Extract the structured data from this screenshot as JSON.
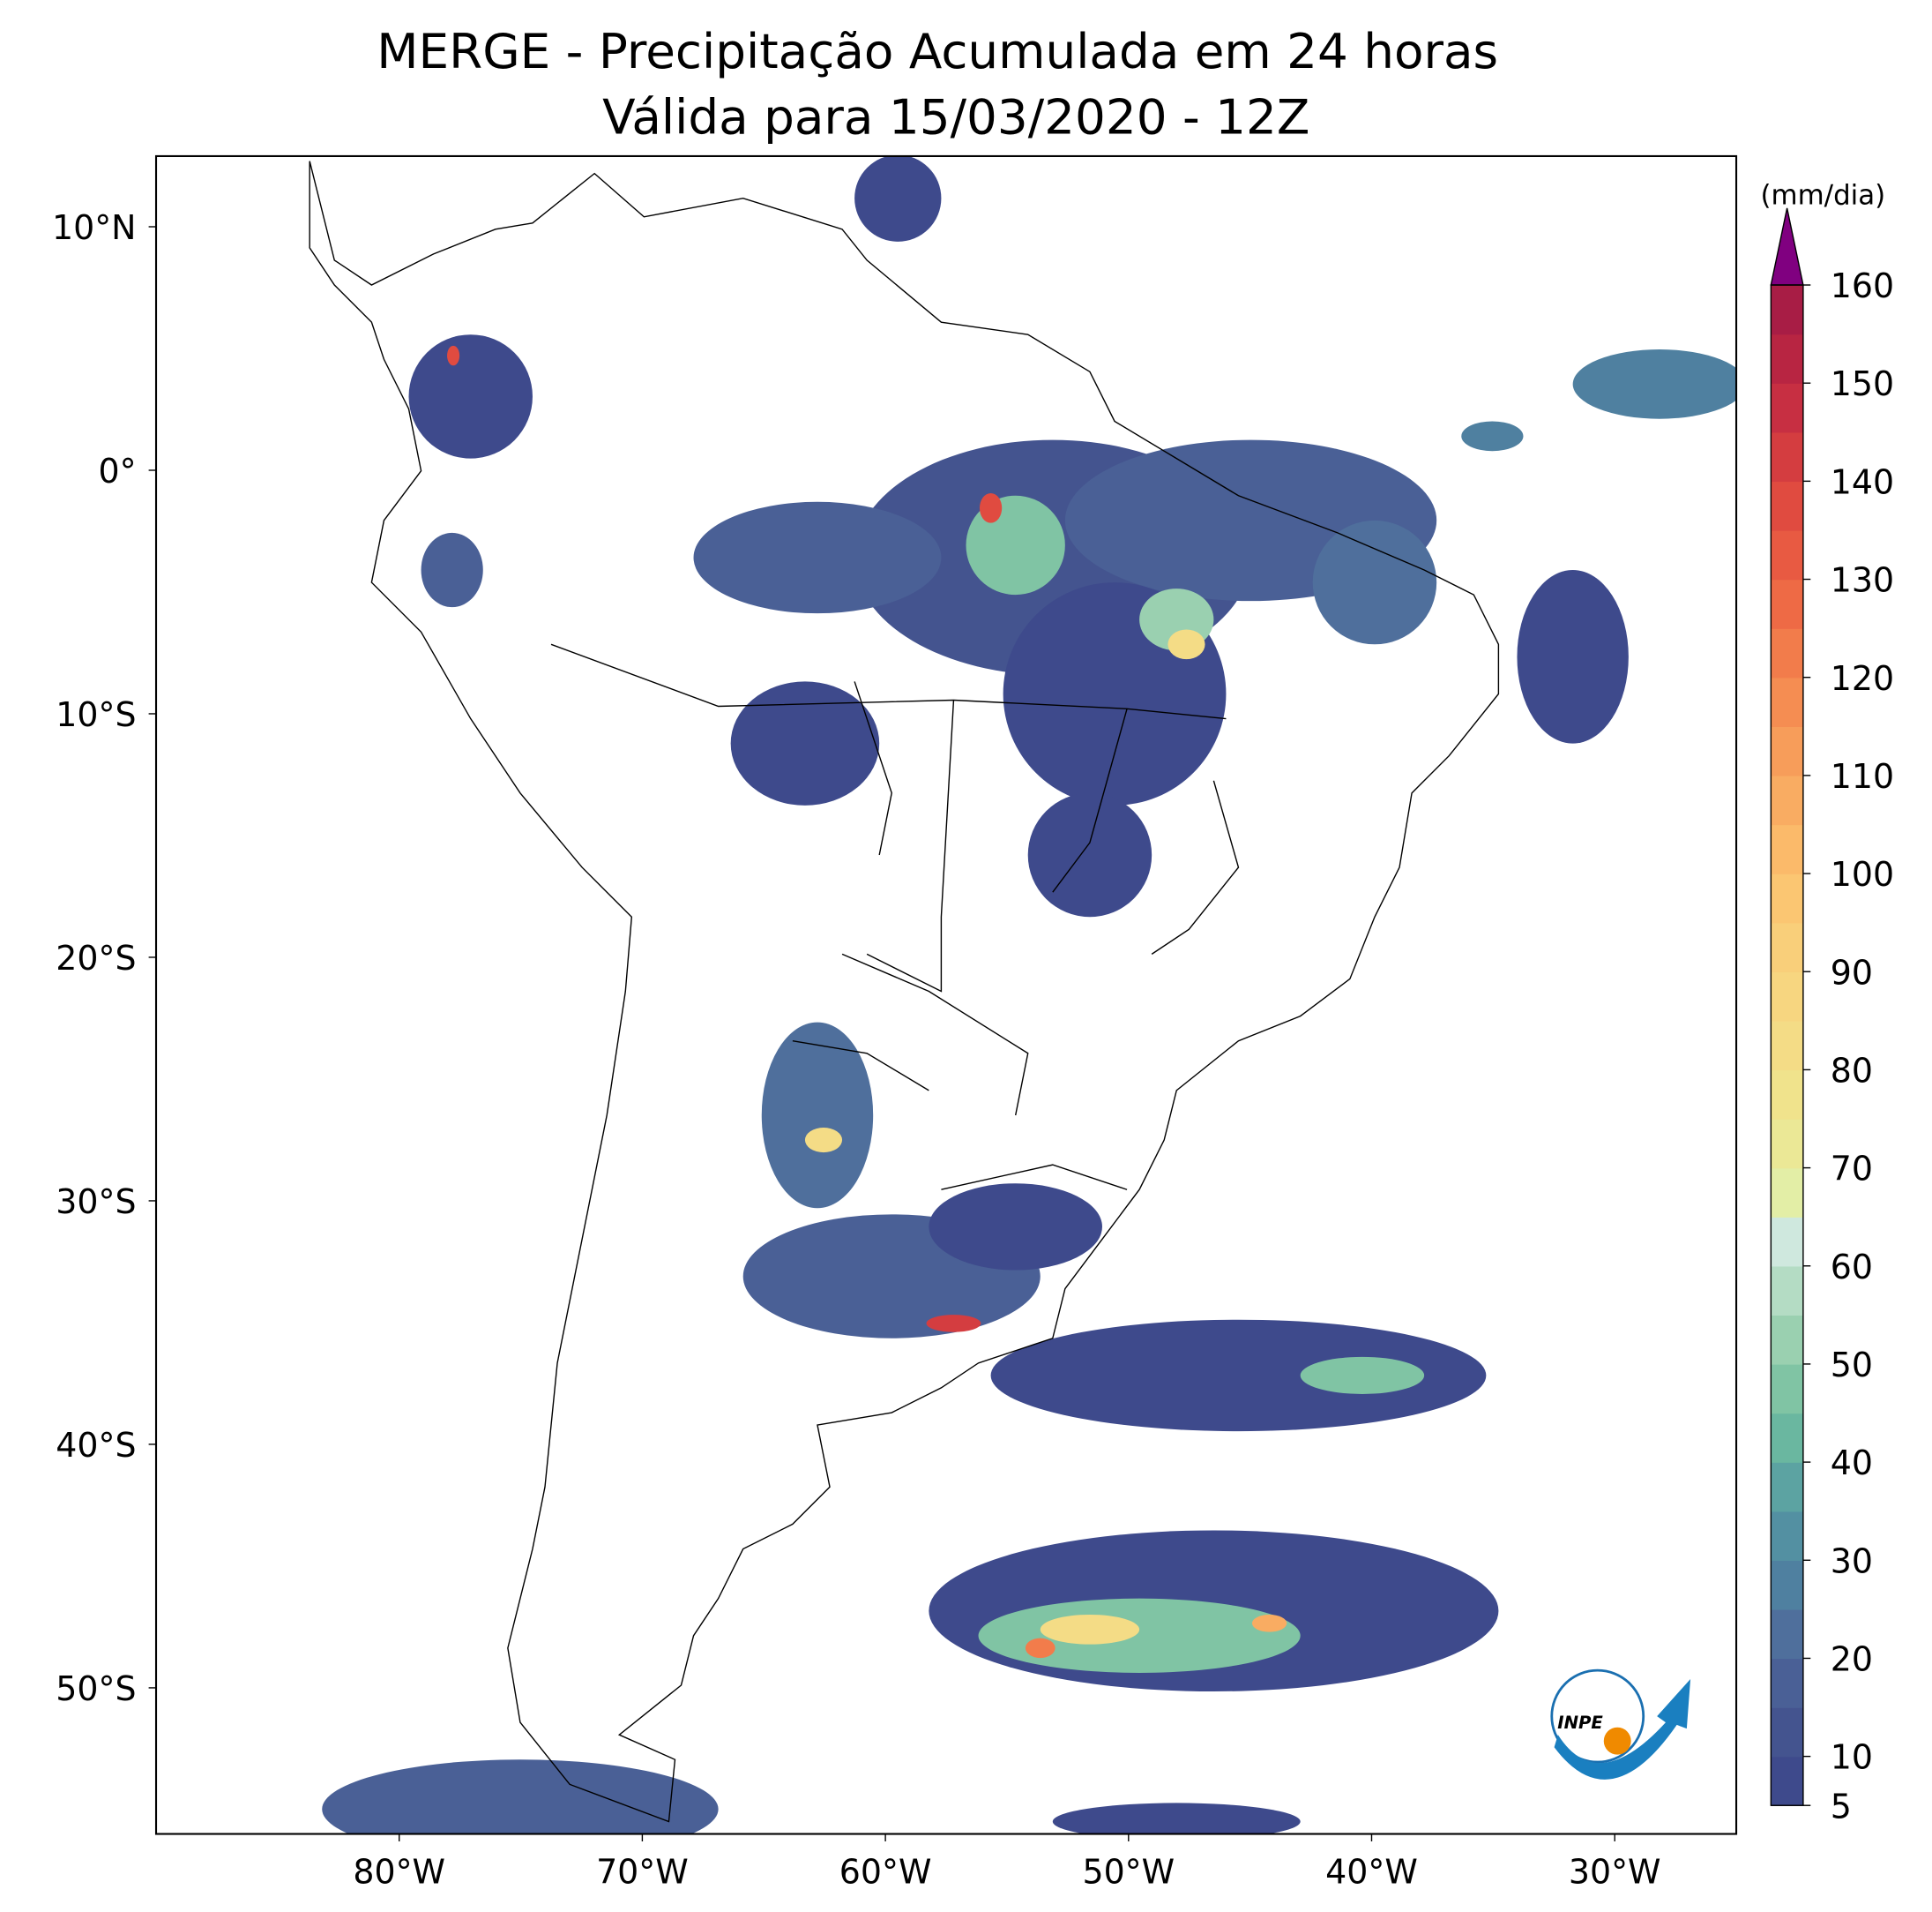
{
  "map": {
    "title": "MERGE - Precipitação Acumulada em 24 horas",
    "subtitle": "Válida para 15/03/2020 - 12Z",
    "xlim": [
      -90,
      -25
    ],
    "ylim": [
      -56,
      12.9
    ],
    "xticks": [
      {
        "value": -80,
        "label": "80°W"
      },
      {
        "value": -70,
        "label": "70°W"
      },
      {
        "value": -60,
        "label": "60°W"
      },
      {
        "value": -50,
        "label": "50°W"
      },
      {
        "value": -40,
        "label": "40°W"
      },
      {
        "value": -30,
        "label": "30°W"
      }
    ],
    "yticks": [
      {
        "value": 10,
        "label": "10°N"
      },
      {
        "value": 0,
        "label": "0°"
      },
      {
        "value": -10,
        "label": "10°S"
      },
      {
        "value": -20,
        "label": "20°S"
      },
      {
        "value": -30,
        "label": "30°S"
      },
      {
        "value": -40,
        "label": "40°S"
      },
      {
        "value": -50,
        "label": "50°S"
      }
    ],
    "logo": "INPE"
  },
  "colorbar": {
    "unit": "(mm/dia)",
    "clim": [
      5,
      160
    ],
    "ticks": [
      5,
      10,
      20,
      30,
      40,
      50,
      60,
      70,
      80,
      90,
      100,
      110,
      120,
      130,
      140,
      150,
      160
    ],
    "levels": [
      5,
      10,
      15,
      20,
      25,
      30,
      35,
      40,
      45,
      50,
      55,
      60,
      65,
      70,
      75,
      80,
      85,
      90,
      95,
      100,
      105,
      110,
      115,
      120,
      125,
      130,
      135,
      140,
      145,
      150,
      155,
      160
    ],
    "colors": [
      "#3e4a8c",
      "#44548f",
      "#4a6096",
      "#4f6f9c",
      "#4f80a0",
      "#5390a2",
      "#5ca3a2",
      "#6ab7a0",
      "#80c4a4",
      "#9ad0b0",
      "#b4dcc4",
      "#cfe8de",
      "#e3eea6",
      "#ebe896",
      "#f0e38c",
      "#f4dc86",
      "#f7d680",
      "#f9cf7a",
      "#fbc672",
      "#fbba6a",
      "#f9ac62",
      "#f79d5a",
      "#f58d52",
      "#f27c4b",
      "#ee6a45",
      "#e85a42",
      "#e04b40",
      "#d43d40",
      "#c72f42",
      "#b82542",
      "#a81d45"
    ],
    "over_color": "#800080"
  }
}
